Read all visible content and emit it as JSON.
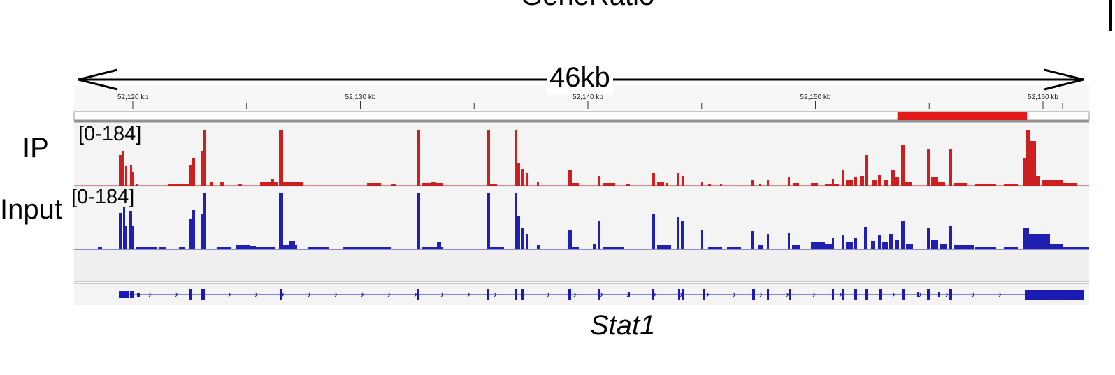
{
  "header": {
    "cut_title": "GeneRatio"
  },
  "scale": {
    "label": "46kb"
  },
  "ruler": {
    "ticks": [
      {
        "label": "52,120 kb",
        "kb": 52120
      },
      {
        "label": "52,130 kb",
        "kb": 52130
      },
      {
        "label": "52,140 kb",
        "kb": 52140
      },
      {
        "label": "52,150 kb",
        "kb": 52150
      },
      {
        "label": "52,160 kb",
        "kb": 52160
      }
    ],
    "highlight_kb": [
      52153.6,
      52159.3
    ],
    "highlight_color": "#e31a1c"
  },
  "tracks": {
    "ip": {
      "label": "IP",
      "range": "[0-184]",
      "color": "#cc1f1f"
    },
    "input": {
      "label": "Input",
      "range": "[0-184]",
      "color": "#1f1fb0"
    }
  },
  "gene": {
    "name": "Stat1",
    "color": "#1a1ab4"
  },
  "colors": {
    "track_bg": "#f4f4f4",
    "ruler_bg": "#f7f7f7"
  }
}
